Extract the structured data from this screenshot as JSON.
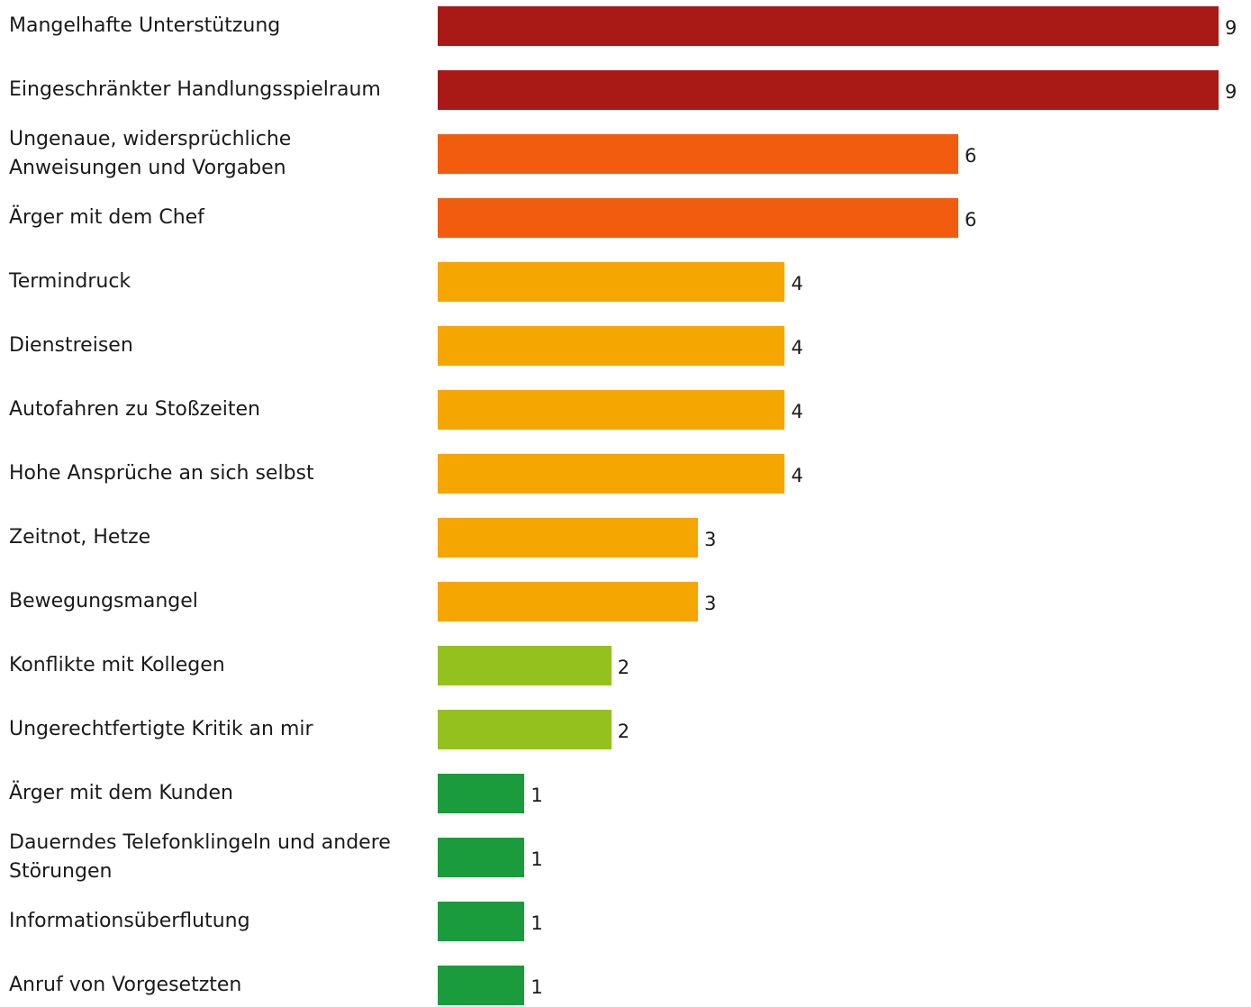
{
  "chart_data": {
    "type": "bar",
    "orientation": "horizontal",
    "title": "",
    "xlabel": "",
    "ylabel": "",
    "xlim": [
      0,
      9
    ],
    "grid": false,
    "legend": "none",
    "categories": [
      "Mangelhafte Unterstützung",
      "Eingeschränkter Handlungsspielraum",
      "Ungenaue, widersprüchliche Anweisungen und Vorgaben",
      "Ärger mit dem Chef",
      "Termindruck",
      "Dienstreisen",
      "Autofahren zu Stoßzeiten",
      "Hohe Ansprüche an sich selbst",
      "Zeitnot, Hetze",
      "Bewegungsmangel",
      "Konflikte mit Kollegen",
      "Ungerechtfertigte Kritik an mir",
      "Ärger mit dem Kunden",
      "Dauerndes Telefonklingeln und andere Störungen",
      "Informationsüberflutung",
      "Anruf von Vorgesetzten"
    ],
    "values": [
      9,
      9,
      6,
      6,
      4,
      4,
      4,
      4,
      3,
      3,
      2,
      2,
      1,
      1,
      1,
      1
    ],
    "colors": [
      "#A91916",
      "#A91916",
      "#F15C0F",
      "#F15C0F",
      "#F5A600",
      "#F5A600",
      "#F5A600",
      "#F5A600",
      "#F5A600",
      "#F5A600",
      "#95C11F",
      "#95C11F",
      "#1A9B3C",
      "#1A9B3C",
      "#1A9B3C",
      "#1A9B3C"
    ]
  }
}
